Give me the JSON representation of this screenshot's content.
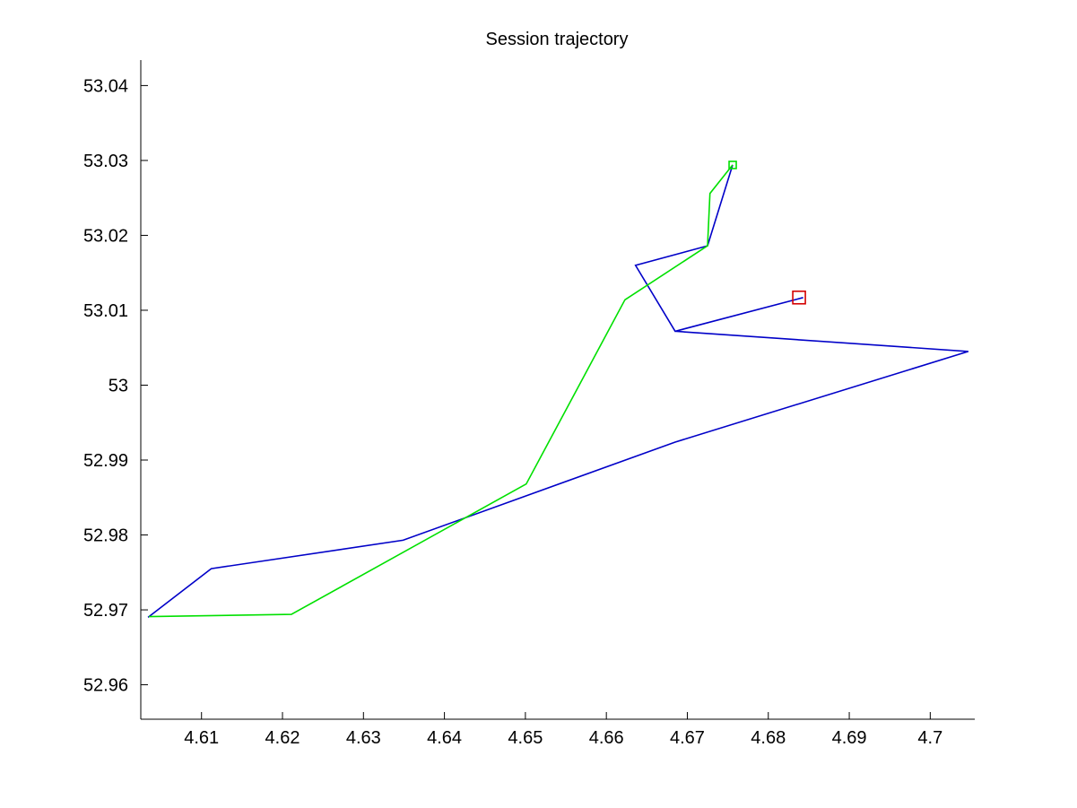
{
  "chart_data": {
    "type": "line",
    "title": "Session trajectory",
    "xlabel": "",
    "ylabel": "",
    "xlim": [
      4.6025,
      4.7055
    ],
    "ylim": [
      52.9554,
      53.0434
    ],
    "grid": false,
    "box": false,
    "x_ticks": [
      4.61,
      4.62,
      4.63,
      4.64,
      4.65,
      4.66,
      4.67,
      4.68,
      4.69,
      4.7
    ],
    "x_tick_labels": [
      "4.61",
      "4.62",
      "4.63",
      "4.64",
      "4.65",
      "4.66",
      "4.67",
      "4.68",
      "4.69",
      "4.7"
    ],
    "y_ticks": [
      52.96,
      52.97,
      52.98,
      52.99,
      53.0,
      53.01,
      53.02,
      53.03,
      53.04
    ],
    "y_tick_labels": [
      "52.96",
      "52.97",
      "52.98",
      "52.99",
      "53",
      "53.01",
      "53.02",
      "53.03",
      "53.04"
    ],
    "series": [
      {
        "color": "#0000c8",
        "x": [
          4.6843,
          4.6685,
          4.6636,
          4.6725,
          4.6756,
          4.6725,
          4.6636,
          4.6685,
          4.7047,
          4.6685,
          4.6349,
          4.6112,
          4.6034
        ],
        "y": [
          53.0117,
          53.0072,
          53.016,
          53.0186,
          53.0294,
          53.0186,
          53.016,
          53.0072,
          53.0045,
          52.9924,
          52.9793,
          52.9755,
          52.969
        ]
      },
      {
        "color": "#00e000",
        "x": [
          4.6756,
          4.6728,
          4.6725,
          4.6623,
          4.6501,
          4.6211,
          4.6035
        ],
        "y": [
          53.0294,
          53.0256,
          53.0186,
          53.0114,
          52.9868,
          52.9694,
          52.9691
        ]
      }
    ],
    "markers": [
      {
        "shape": "square",
        "color": "#d40000",
        "x": 4.6838,
        "y": 53.0117,
        "size": "large"
      },
      {
        "shape": "square",
        "color": "#00e000",
        "x": 4.6756,
        "y": 53.0294,
        "size": "small"
      }
    ]
  }
}
